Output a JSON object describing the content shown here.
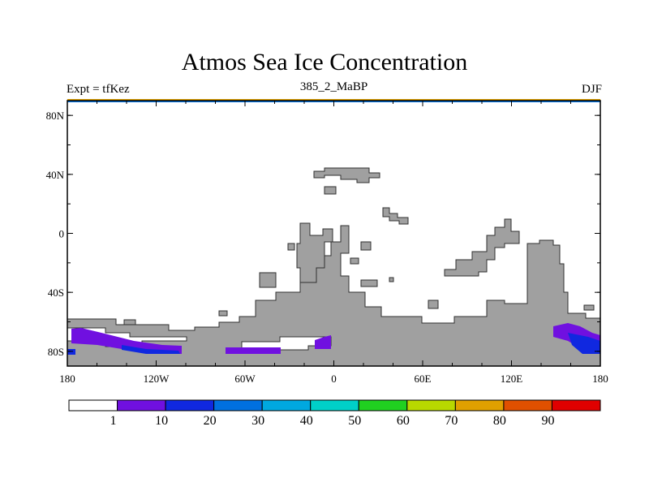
{
  "title": "Atmos Sea Ice Concentration",
  "left_label": "Expt = tfKez",
  "center_label": "385_2_MaBP",
  "right_label": "DJF",
  "map": {
    "lon_ticks": [
      "180",
      "120W",
      "60W",
      "0",
      "60E",
      "120E",
      "180"
    ],
    "lat_ticks": [
      "80N",
      "40N",
      "0",
      "40S",
      "80S"
    ],
    "land_color": "#a0a0a0",
    "ocean_color": "#ffffff"
  },
  "colorbar": {
    "colors": [
      "#ffffff",
      "#7010e0",
      "#1028e0",
      "#0070e0",
      "#00a8e0",
      "#00d0c8",
      "#20d020",
      "#b8d800",
      "#e0a000",
      "#e05000",
      "#e00000"
    ],
    "labels": [
      "1",
      "10",
      "20",
      "30",
      "40",
      "50",
      "60",
      "70",
      "80",
      "90"
    ]
  }
}
